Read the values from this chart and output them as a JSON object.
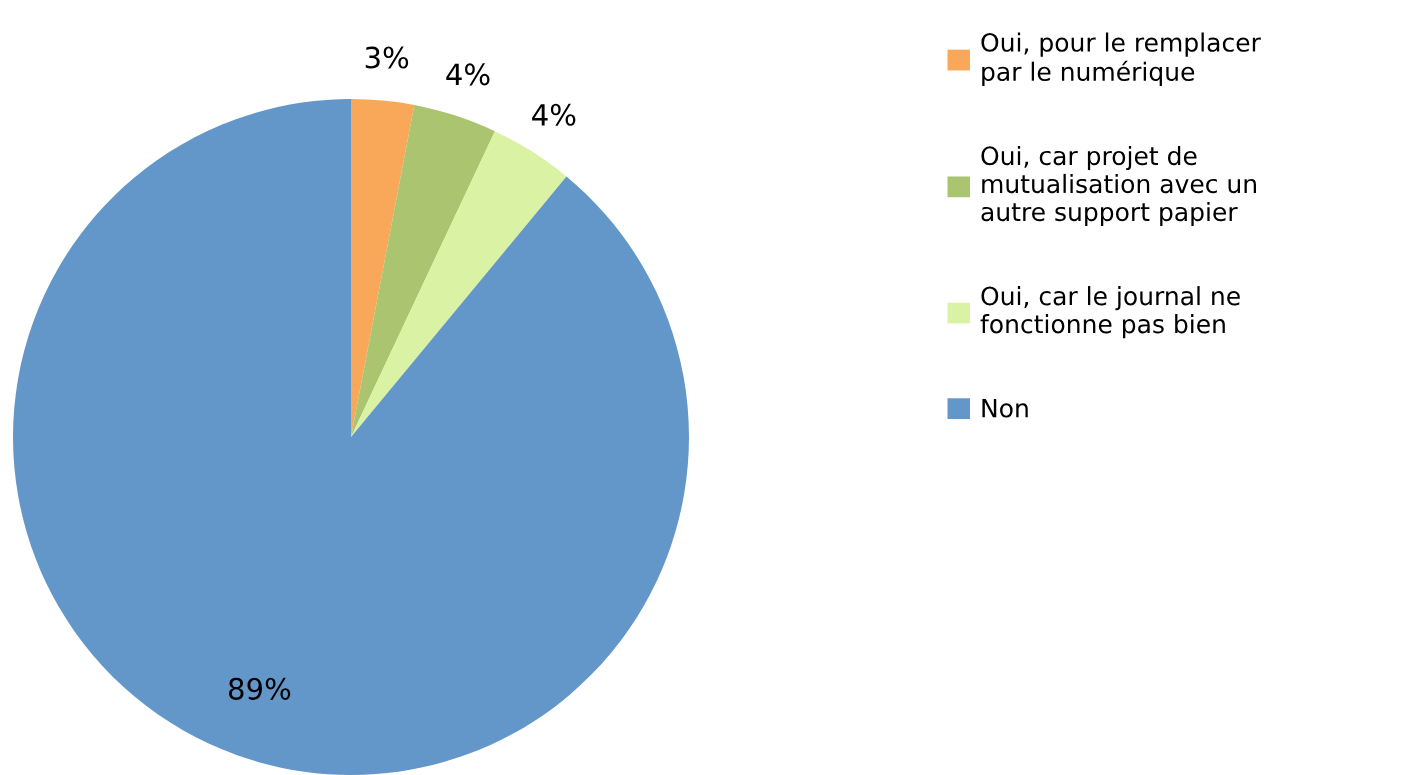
{
  "chart_data": {
    "type": "pie",
    "categories": [
      "Oui, pour le remplacer\npar le numérique",
      "Oui, car projet de\nmutualisation avec un\nautre support papier",
      "Oui, car le journal ne\nfonctionne pas bien",
      "Non"
    ],
    "values": [
      3,
      4,
      4,
      89
    ],
    "colors": [
      "#f9a85a",
      "#aac46f",
      "#d9f2a3",
      "#6497c9"
    ],
    "value_labels": [
      "3%",
      "4%",
      "4%",
      "89%"
    ],
    "legend": "right"
  }
}
